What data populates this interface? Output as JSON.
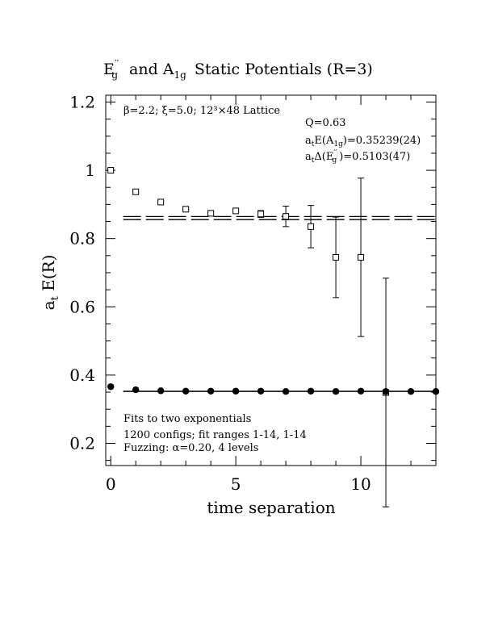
{
  "chart_data": {
    "type": "scatter",
    "title": {
      "prefix": "E",
      "prefix_sup": "′′",
      "prefix_sub": "g",
      "middle": "and A",
      "middle_sub": "1g",
      "suffix": "Static Potentials (R=3)"
    },
    "xlabel": "time separation",
    "ylabel": {
      "main": "a",
      "sub": "t",
      "rest": " E(R)"
    },
    "xlim": [
      -0.2,
      13.0
    ],
    "ylim": [
      0.135,
      1.22
    ],
    "x_ticks": [
      0,
      5,
      10
    ],
    "y_ticks": [
      0.2,
      0.4,
      0.6,
      0.8,
      1.0
    ],
    "x_tick_labels": [
      "0",
      "5",
      "10"
    ],
    "y_tick_labels": [
      "0.2",
      "0.4",
      "0.6",
      "0.8",
      "1",
      "1.2"
    ],
    "y_tick_label_values": [
      0.2,
      0.4,
      0.6,
      0.8,
      1.0,
      1.2
    ],
    "grid": false,
    "annotations": {
      "lattice": "β=2.2; ξ=5.0; 12³×48 Lattice",
      "q": "Q=0.63",
      "a1g_pre": "a",
      "a1g_sub": "t",
      "a1g_mid": "E(A",
      "a1g_sub2": "1g",
      "a1g_val": ")=0.35239(24)",
      "eg_pre": "a",
      "eg_sub": "t",
      "eg_mid": "Δ(E",
      "eg_sup": "′′",
      "eg_sub2": "g",
      "eg_val": ")=0.5103(47)",
      "fits": "Fits to two exponentials",
      "configs": "1200 configs; fit ranges 1-14, 1-14",
      "fuzzing": "Fuzzing: α=0.20, 4 levels"
    },
    "series": [
      {
        "marker": "open-square",
        "x": [
          0,
          1,
          2,
          3,
          4,
          5,
          6,
          7,
          8,
          9,
          10,
          11
        ],
        "y": [
          1.0,
          0.937,
          0.907,
          0.886,
          0.874,
          0.881,
          0.872,
          0.865,
          0.835,
          0.745,
          0.745,
          0.349
        ],
        "err": [
          0.0,
          0.002,
          0.004,
          0.003,
          0.004,
          0.005,
          0.01,
          0.03,
          0.062,
          0.118,
          0.232,
          0.335
        ]
      },
      {
        "marker": "filled-circle",
        "x": [
          0,
          1,
          2,
          3,
          4,
          5,
          6,
          7,
          8,
          9,
          10,
          11,
          12,
          13
        ],
        "y": [
          0.366,
          0.357,
          0.354,
          0.353,
          0.353,
          0.353,
          0.353,
          0.352,
          0.353,
          0.352,
          0.353,
          0.352,
          0.352,
          0.352
        ],
        "err": [
          0,
          0,
          0,
          0,
          0,
          0,
          0,
          0,
          0,
          0,
          0,
          0,
          0,
          0
        ]
      }
    ],
    "fit_bands": [
      {
        "name": "Eg fit",
        "upper": 0.8645,
        "lower": 0.8555,
        "x_range": [
          0.5,
          13.0
        ],
        "style": "dashed"
      },
      {
        "name": "A1g fit",
        "upper": 0.3526,
        "lower": 0.3522,
        "x_range": [
          0.5,
          13.0
        ],
        "style": "solid"
      }
    ]
  }
}
